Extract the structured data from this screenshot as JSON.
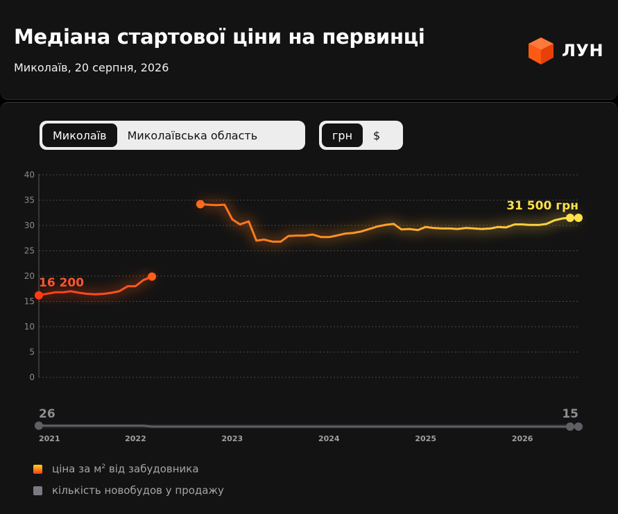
{
  "header": {
    "title": "Медіана стартової ціни на первинці",
    "subtitle": "Миколаїв, 20 серпня, 2026",
    "logo_text": "ЛУН"
  },
  "controls": {
    "region_tabs": [
      {
        "label": "Миколаїв",
        "active": true
      },
      {
        "label": "Миколаївська область",
        "active": false
      }
    ],
    "currency_tabs": [
      {
        "label": "грн",
        "active": true
      },
      {
        "label": "$",
        "active": false
      }
    ]
  },
  "colors": {
    "price_start": "#ff3d14",
    "price_mid": "#ff8a1e",
    "price_end": "#ffe04a",
    "count": "#5f5f66",
    "grid": "#4a4a4a"
  },
  "legend": {
    "price_label": "ціна за м",
    "price_sup": "2",
    "price_label_tail": " від забудовника",
    "count_label": "кількість новобудов у продажу"
  },
  "chart_data": {
    "type": "line",
    "ylim": [
      0,
      40
    ],
    "yticks": [
      "0",
      "5",
      "10",
      "15",
      "20",
      "25",
      "30",
      "35",
      "40"
    ],
    "x_ticks": [
      "2021",
      "2022",
      "2023",
      "2024",
      "2025",
      "2026"
    ],
    "grid": true,
    "first_value_label": "16 200",
    "last_value_label": "31 500 грн",
    "count_first_label": "26",
    "count_last_label": "15",
    "series": [
      {
        "name": "ціна за м² від забудовника",
        "unit": "тис. грн",
        "segments": [
          [
            [
              2021.0,
              16.2
            ],
            [
              2021.08,
              16.5
            ],
            [
              2021.17,
              16.8
            ],
            [
              2021.25,
              16.8
            ],
            [
              2021.33,
              17.0
            ],
            [
              2021.42,
              16.7
            ],
            [
              2021.5,
              16.5
            ],
            [
              2021.58,
              16.4
            ],
            [
              2021.67,
              16.5
            ],
            [
              2021.75,
              16.7
            ],
            [
              2021.83,
              17.0
            ],
            [
              2021.92,
              18.0
            ],
            [
              2022.0,
              18.0
            ],
            [
              2022.08,
              19.2
            ],
            [
              2022.17,
              19.9
            ]
          ],
          [
            [
              2022.67,
              34.2
            ],
            [
              2022.75,
              34.1
            ],
            [
              2022.83,
              34.0
            ],
            [
              2022.92,
              34.1
            ],
            [
              2023.0,
              31.2
            ],
            [
              2023.08,
              30.2
            ],
            [
              2023.17,
              30.8
            ],
            [
              2023.25,
              27.0
            ],
            [
              2023.33,
              27.2
            ],
            [
              2023.42,
              26.8
            ],
            [
              2023.5,
              26.8
            ],
            [
              2023.58,
              27.9
            ],
            [
              2023.67,
              28.0
            ],
            [
              2023.75,
              28.0
            ],
            [
              2023.83,
              28.2
            ],
            [
              2023.92,
              27.7
            ],
            [
              2024.0,
              27.7
            ],
            [
              2024.08,
              28.0
            ],
            [
              2024.17,
              28.4
            ],
            [
              2024.25,
              28.5
            ],
            [
              2024.33,
              28.8
            ],
            [
              2024.42,
              29.3
            ],
            [
              2024.5,
              29.8
            ],
            [
              2024.58,
              30.1
            ],
            [
              2024.67,
              30.3
            ],
            [
              2024.75,
              29.2
            ],
            [
              2024.83,
              29.3
            ],
            [
              2024.92,
              29.1
            ],
            [
              2025.0,
              29.7
            ],
            [
              2025.08,
              29.5
            ],
            [
              2025.17,
              29.4
            ],
            [
              2025.25,
              29.4
            ],
            [
              2025.33,
              29.3
            ],
            [
              2025.42,
              29.5
            ],
            [
              2025.5,
              29.4
            ],
            [
              2025.58,
              29.3
            ],
            [
              2025.67,
              29.4
            ],
            [
              2025.75,
              29.7
            ],
            [
              2025.83,
              29.6
            ],
            [
              2025.92,
              30.2
            ],
            [
              2026.0,
              30.2
            ],
            [
              2026.08,
              30.1
            ],
            [
              2026.17,
              30.1
            ],
            [
              2026.25,
              30.3
            ],
            [
              2026.33,
              31.0
            ],
            [
              2026.42,
              31.4
            ],
            [
              2026.5,
              31.5
            ],
            [
              2026.58,
              31.5
            ]
          ]
        ]
      },
      {
        "name": "кількість новобудов у продажу",
        "points": [
          [
            2021.0,
            26
          ],
          [
            2022.08,
            26
          ],
          [
            2022.17,
            15
          ],
          [
            2022.67,
            15
          ],
          [
            2023.0,
            15
          ],
          [
            2024.0,
            15
          ],
          [
            2025.0,
            15
          ],
          [
            2026.5,
            15
          ],
          [
            2026.58,
            15
          ]
        ]
      }
    ]
  }
}
